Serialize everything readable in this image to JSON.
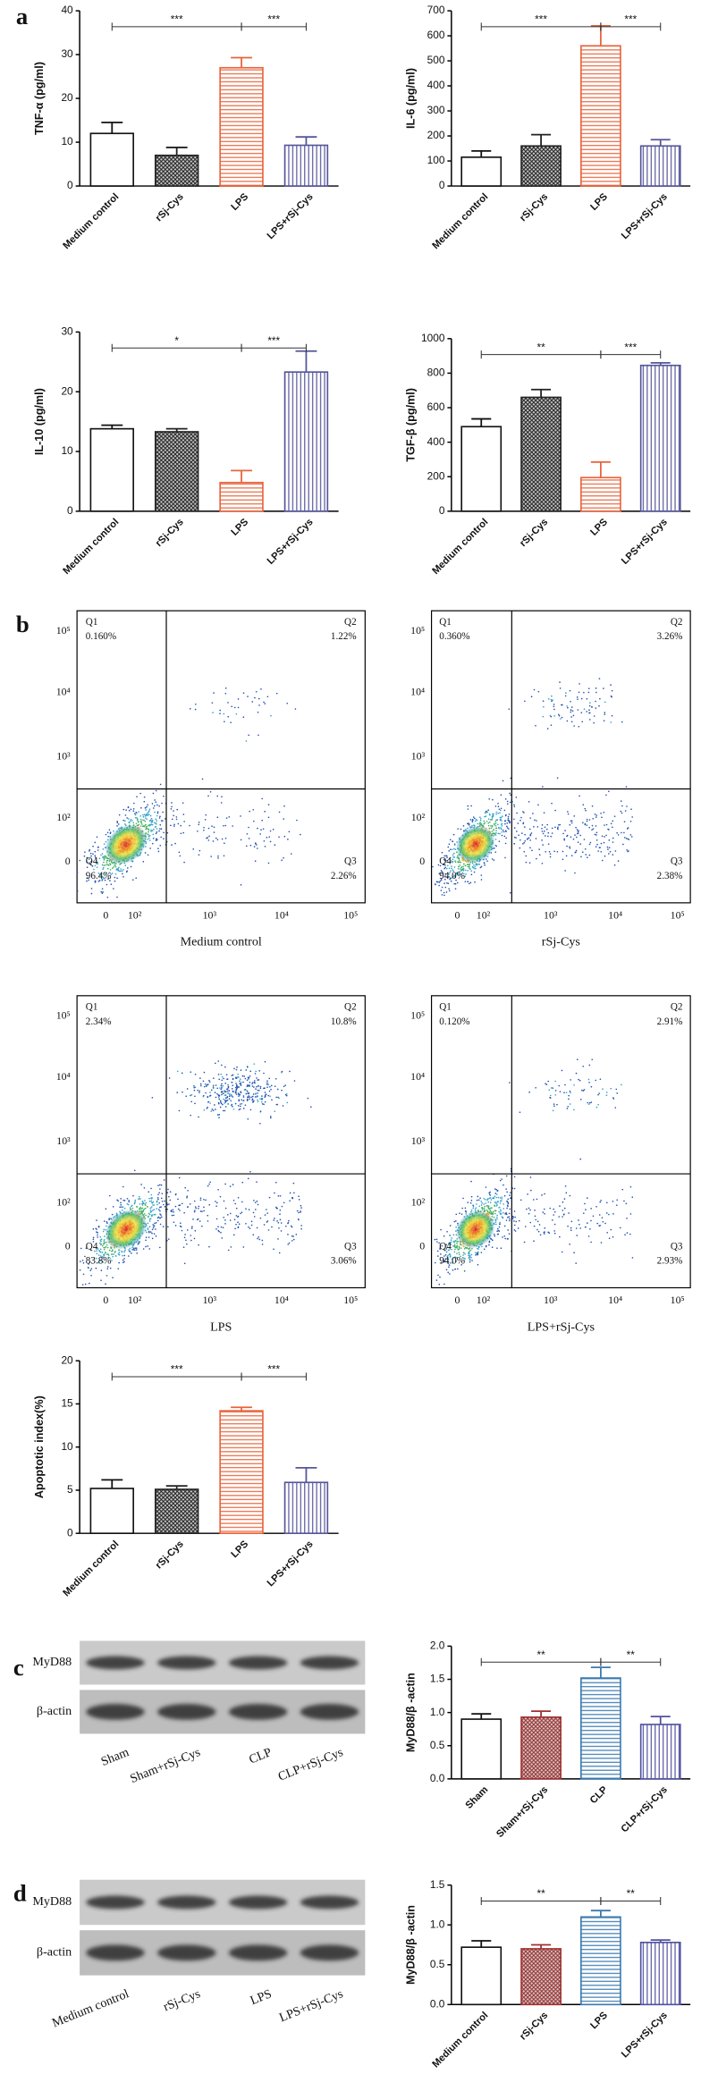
{
  "panel_labels": [
    "a",
    "b",
    "c",
    "d"
  ],
  "chart_data": [
    {
      "type": "bar",
      "ylabel": "TNF-α (pg/ml)",
      "categories": [
        "Medium control",
        "rSj-Cys",
        "LPS",
        "LPS+rSj-Cys"
      ],
      "values": [
        12,
        7,
        27,
        9.3
      ],
      "errors": [
        2.5,
        1.8,
        2.3,
        1.9
      ],
      "colors": [
        "#111111",
        "#222222",
        "#e8643c",
        "#55559a"
      ],
      "patterns": [
        "none",
        "cross",
        "hlines",
        "vlines"
      ],
      "ylim": [
        0,
        40
      ],
      "yticks": [
        0,
        10,
        20,
        30,
        40
      ],
      "brackets": [
        {
          "from": "Medium control",
          "to": "LPS",
          "label": "***"
        },
        {
          "from": "LPS",
          "to": "LPS+rSj-Cys",
          "label": "***"
        }
      ]
    },
    {
      "type": "bar",
      "ylabel": "IL-6 (pg/ml)",
      "categories": [
        "Medium control",
        "rSj-Cys",
        "LPS",
        "LPS+rSj-Cys"
      ],
      "values": [
        115,
        160,
        560,
        160
      ],
      "errors": [
        25,
        45,
        80,
        25
      ],
      "colors": [
        "#111111",
        "#222222",
        "#e8643c",
        "#55559a"
      ],
      "patterns": [
        "none",
        "cross",
        "hlines",
        "vlines"
      ],
      "ylim": [
        0,
        700
      ],
      "yticks": [
        0,
        100,
        200,
        300,
        400,
        500,
        600,
        700
      ],
      "brackets": [
        {
          "from": "Medium control",
          "to": "LPS",
          "label": "***"
        },
        {
          "from": "LPS",
          "to": "LPS+rSj-Cys",
          "label": "***"
        }
      ]
    },
    {
      "type": "bar",
      "ylabel": "IL-10 (pg/ml)",
      "categories": [
        "Medium control",
        "rSj-Cys",
        "LPS",
        "LPS+rSj-Cys"
      ],
      "values": [
        13.8,
        13.3,
        4.8,
        23.3
      ],
      "errors": [
        0.6,
        0.5,
        2,
        3.5
      ],
      "colors": [
        "#111111",
        "#222222",
        "#e8643c",
        "#55559a"
      ],
      "patterns": [
        "none",
        "cross",
        "hlines",
        "vlines"
      ],
      "ylim": [
        0,
        30
      ],
      "yticks": [
        0,
        10,
        20,
        30
      ],
      "brackets": [
        {
          "from": "Medium control",
          "to": "LPS",
          "label": "*"
        },
        {
          "from": "LPS",
          "to": "LPS+rSj-Cys",
          "label": "***"
        }
      ]
    },
    {
      "type": "bar",
      "ylabel": "TGF-β (pg/ml)",
      "categories": [
        "Medium control",
        "rSj-Cys",
        "LPS",
        "LPS+rSj-Cys"
      ],
      "values": [
        490,
        660,
        195,
        845
      ],
      "errors": [
        45,
        45,
        90,
        15
      ],
      "colors": [
        "#111111",
        "#222222",
        "#e8643c",
        "#55559a"
      ],
      "patterns": [
        "none",
        "cross",
        "hlines",
        "vlines"
      ],
      "ylim": [
        0,
        1000
      ],
      "yticks": [
        0,
        200,
        400,
        600,
        800,
        1000
      ],
      "brackets": [
        {
          "from": "Medium control",
          "to": "LPS",
          "label": "**"
        },
        {
          "from": "LPS",
          "to": "LPS+rSj-Cys",
          "label": "***"
        }
      ]
    },
    {
      "type": "bar",
      "ylabel": "Apoptotic index(%)",
      "categories": [
        "Medium control",
        "rSj-Cys",
        "LPS",
        "LPS+rSj-Cys"
      ],
      "values": [
        5.2,
        5.1,
        14.2,
        5.9
      ],
      "errors": [
        1,
        0.4,
        0.4,
        1.7
      ],
      "colors": [
        "#111111",
        "#222222",
        "#e8643c",
        "#55559a"
      ],
      "patterns": [
        "none",
        "cross",
        "hlines",
        "vlines"
      ],
      "ylim": [
        0,
        20
      ],
      "yticks": [
        0,
        5,
        10,
        15,
        20
      ],
      "brackets": [
        {
          "from": "Medium control",
          "to": "LPS",
          "label": "***"
        },
        {
          "from": "LPS",
          "to": "LPS+rSj-Cys",
          "label": "***"
        }
      ]
    },
    {
      "type": "bar",
      "ylabel": "MyD88/β -actin",
      "categories": [
        "Sham",
        "Sham+rSj-Cys",
        "CLP",
        "CLP+rSj-Cys"
      ],
      "values": [
        0.9,
        0.93,
        1.52,
        0.82
      ],
      "errors": [
        0.08,
        0.09,
        0.16,
        0.12
      ],
      "colors": [
        "#111111",
        "#a03030",
        "#3a7ab0",
        "#5050a0"
      ],
      "patterns": [
        "none",
        "cross",
        "hlines",
        "vlines"
      ],
      "ylim": [
        0,
        2
      ],
      "yticks": [
        {
          "value": 0,
          "label": "0.0"
        },
        0.5,
        {
          "value": 1,
          "label": "1.0"
        },
        1.5,
        {
          "value": 2,
          "label": "2.0"
        }
      ],
      "brackets": [
        {
          "from": "Sham",
          "to": "CLP",
          "label": "**"
        },
        {
          "from": "CLP",
          "to": "CLP+rSj-Cys",
          "label": "**"
        }
      ]
    },
    {
      "type": "bar",
      "ylabel": "MyD88/β -actin",
      "categories": [
        "Medium control",
        "rSj-Cys",
        "LPS",
        "LPS+rSj-Cys"
      ],
      "values": [
        0.72,
        0.7,
        1.1,
        0.78
      ],
      "errors": [
        0.08,
        0.05,
        0.08,
        0.03
      ],
      "colors": [
        "#111111",
        "#a03030",
        "#3a7ab0",
        "#5050a0"
      ],
      "patterns": [
        "none",
        "cross",
        "hlines",
        "vlines"
      ],
      "ylim": [
        0,
        1.5
      ],
      "yticks": [
        {
          "value": 0,
          "label": "0.0"
        },
        0.5,
        {
          "value": 1,
          "label": "1.0"
        },
        1.5
      ],
      "brackets": [
        {
          "from": "Medium control",
          "to": "LPS",
          "label": "**"
        },
        {
          "from": "LPS",
          "to": "LPS+rSj-Cys",
          "label": "**"
        }
      ]
    }
  ],
  "flow_cytometry": {
    "tick_labels": [
      "0",
      "10²",
      "10³",
      "10⁴",
      "10⁵"
    ],
    "plots": [
      {
        "caption": "Medium control",
        "quadrants": [
          {
            "name": "Q1",
            "percent": "0.160%"
          },
          {
            "name": "Q2",
            "percent": "1.22%"
          },
          {
            "name": "Q3",
            "percent": "2.26%"
          },
          {
            "name": "Q4",
            "percent": "96.4%"
          }
        ]
      },
      {
        "caption": "rSj-Cys",
        "quadrants": [
          {
            "name": "Q1",
            "percent": "0.360%"
          },
          {
            "name": "Q2",
            "percent": "3.26%"
          },
          {
            "name": "Q3",
            "percent": "2.38%"
          },
          {
            "name": "Q4",
            "percent": "94.0%"
          }
        ]
      },
      {
        "caption": "LPS",
        "quadrants": [
          {
            "name": "Q1",
            "percent": "2.34%"
          },
          {
            "name": "Q2",
            "percent": "10.8%"
          },
          {
            "name": "Q3",
            "percent": "3.06%"
          },
          {
            "name": "Q4",
            "percent": "83.8%"
          }
        ]
      },
      {
        "caption": "LPS+rSj-Cys",
        "quadrants": [
          {
            "name": "Q1",
            "percent": "0.120%"
          },
          {
            "name": "Q2",
            "percent": "2.91%"
          },
          {
            "name": "Q3",
            "percent": "2.93%"
          },
          {
            "name": "Q4",
            "percent": "94.0%"
          }
        ]
      }
    ]
  },
  "western_blots": [
    {
      "rows": [
        "MyD88",
        "β-actin"
      ],
      "lanes": [
        "Sham",
        "Sham+rSj-Cys",
        "CLP",
        "CLP+rSj-Cys"
      ]
    },
    {
      "rows": [
        "MyD88",
        "β-actin"
      ],
      "lanes": [
        "Medium control",
        "rSj-Cys",
        "LPS",
        "LPS+rSj-Cys"
      ]
    }
  ]
}
